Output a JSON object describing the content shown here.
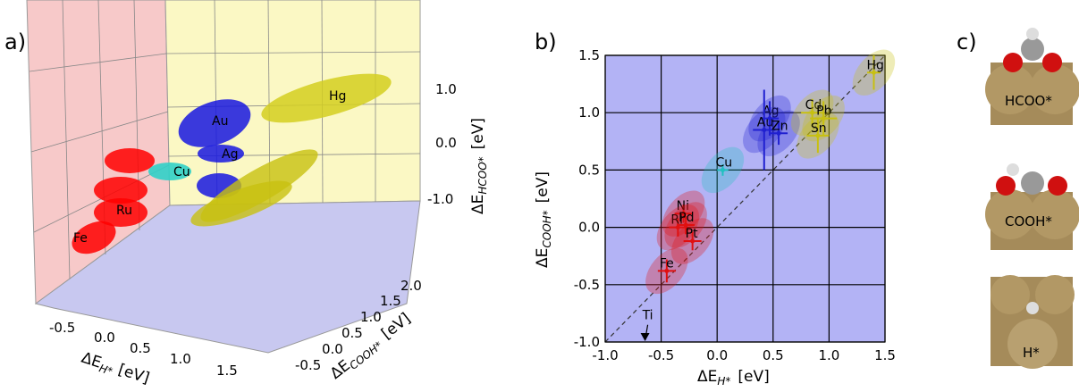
{
  "panel_a": {
    "label": "a)",
    "element_labels": [
      "Au",
      "Ag",
      "Cu",
      "Hg",
      "Ru",
      "Fe"
    ],
    "z_ticks": [
      "1.0",
      "0.0",
      "-1.0"
    ],
    "z_label": "ΔE",
    "z_label_sub": "HCOO*",
    "z_unit": "[eV]",
    "x_ticks": [
      "-0.5",
      "0.0",
      "0.5",
      "1.0",
      "1.5"
    ],
    "x_label": "ΔE",
    "x_label_sub": "H*",
    "x_unit": "[eV]",
    "y_ticks": [
      "2.0",
      "1.5",
      "1.0",
      "0.5",
      "0.0",
      "-0.5"
    ],
    "y_label": "ΔE",
    "y_label_sub": "COOH*",
    "y_unit": "[eV]"
  },
  "chart_data": {
    "type": "scatter",
    "panel_label": "b)",
    "x_label": "ΔE",
    "x_label_sub": "H*",
    "x_unit": "[eV]",
    "y_label": "ΔE",
    "y_label_sub": "COOH*",
    "y_unit": "[eV]",
    "xlim": [
      -1.0,
      1.5
    ],
    "ylim": [
      -1.0,
      1.5
    ],
    "xticks": [
      {
        "value": -1.0,
        "label": "-1.0"
      },
      {
        "value": -0.5,
        "label": "-0.5"
      },
      {
        "value": 0.0,
        "label": "0.0"
      },
      {
        "value": 0.5,
        "label": "0.5"
      },
      {
        "value": 1.0,
        "label": "1.0"
      },
      {
        "value": 1.5,
        "label": "1.5"
      }
    ],
    "yticks": [
      {
        "value": -1.0,
        "label": "-1.0"
      },
      {
        "value": -0.5,
        "label": "-0.5"
      },
      {
        "value": 0.0,
        "label": "0.0"
      },
      {
        "value": 0.5,
        "label": "0.5"
      },
      {
        "value": 1.0,
        "label": "1.0"
      },
      {
        "value": 1.5,
        "label": "1.5"
      }
    ],
    "grid": true,
    "background": "#b3b3f5",
    "series": [
      {
        "color": "#e01010",
        "labels": [
          "Fe",
          "Ni",
          "Rh",
          "Pd",
          "Pt"
        ],
        "x": [
          -0.45,
          -0.3,
          -0.35,
          -0.28,
          -0.22
        ],
        "y": [
          -0.38,
          0.12,
          0.0,
          0.02,
          -0.12
        ],
        "x_err": [
          0.08,
          0.08,
          0.08,
          0.08,
          0.08
        ],
        "y_err": [
          0.1,
          0.08,
          0.08,
          0.08,
          0.08
        ]
      },
      {
        "color": "#20c0c0",
        "labels": [
          "Cu"
        ],
        "x": [
          0.05
        ],
        "y": [
          0.5
        ],
        "x_err": [
          0.05
        ],
        "y_err": [
          0.05
        ]
      },
      {
        "color": "#2020d0",
        "labels": [
          "Ag",
          "Au",
          "Zn"
        ],
        "x": [
          0.47,
          0.42,
          0.55
        ],
        "y": [
          0.95,
          0.85,
          0.82
        ],
        "x_err": [
          0.08,
          0.1,
          0.08
        ],
        "y_err": [
          0.15,
          0.35,
          0.1
        ]
      },
      {
        "color": "#c8c010",
        "labels": [
          "Cd",
          "Pb",
          "Sn",
          "Hg"
        ],
        "x": [
          0.85,
          0.95,
          0.9,
          1.4
        ],
        "y": [
          1.0,
          0.95,
          0.8,
          1.35
        ],
        "x_err": [
          0.1,
          0.12,
          0.1,
          0.06
        ],
        "y_err": [
          0.12,
          0.15,
          0.15,
          0.15
        ]
      }
    ],
    "annotation": {
      "text": "Ti",
      "x": -0.62,
      "y": -0.85
    }
  },
  "panel_c": {
    "label": "c)",
    "structures": [
      "HCOO*",
      "COOH*",
      "H*"
    ]
  }
}
